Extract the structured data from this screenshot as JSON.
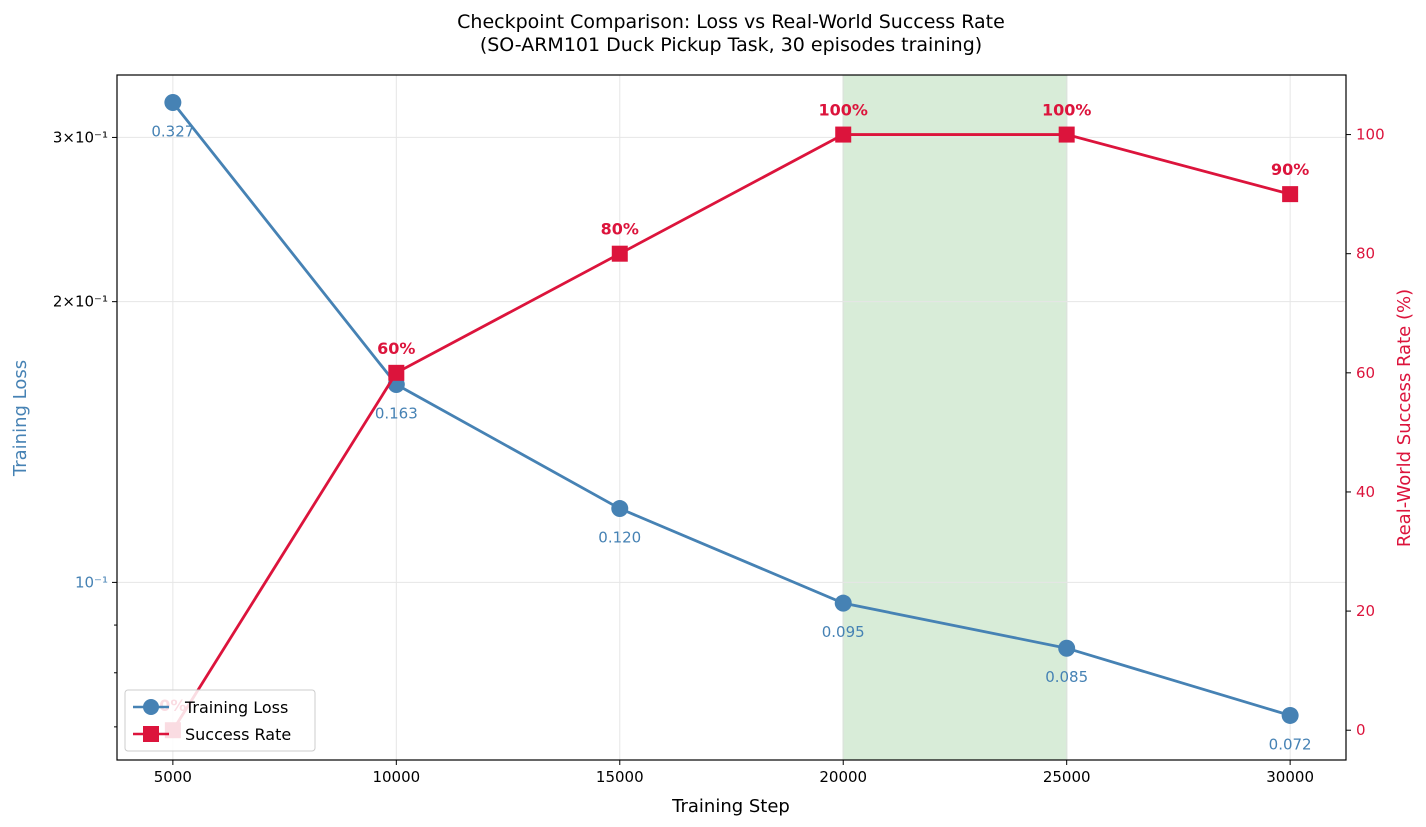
{
  "chart_data": {
    "type": "line",
    "title": "Checkpoint Comparison: Loss vs Real-World Success Rate",
    "subtitle": "(SO-ARM101 Duck Pickup Task, 30 episodes training)",
    "xlabel": "Training Step",
    "ylabel_left": "Training Loss",
    "ylabel_right": "Real-World Success Rate (%)",
    "x": [
      5000,
      10000,
      15000,
      20000,
      25000,
      30000
    ],
    "x_ticks": [
      "5000",
      "10000",
      "15000",
      "20000",
      "25000",
      "30000"
    ],
    "xlim": [
      3750,
      31250
    ],
    "left_axis": {
      "scale": "log",
      "ylim": [
        0.0645,
        0.35
      ],
      "major_ticks": [
        {
          "value": 0.1,
          "label": "10⁻¹"
        },
        {
          "value": 0.2,
          "label": "2×10⁻¹"
        },
        {
          "value": 0.3,
          "label": "3×10⁻¹"
        }
      ],
      "minor_ticks": [
        0.07,
        0.08,
        0.09
      ]
    },
    "right_axis": {
      "scale": "linear",
      "ylim": [
        -5,
        110
      ],
      "ticks": [
        0,
        20,
        40,
        60,
        80,
        100
      ],
      "tick_labels": [
        "0",
        "20",
        "40",
        "60",
        "80",
        "100"
      ]
    },
    "highlight_range": [
      20000,
      25000
    ],
    "grid": true,
    "legend_position": "bottom-left",
    "series": [
      {
        "name": "Training Loss",
        "axis": "left",
        "values": [
          0.327,
          0.163,
          0.12,
          0.095,
          0.085,
          0.072
        ],
        "labels": [
          "0.327",
          "0.163",
          "0.120",
          "0.095",
          "0.085",
          "0.072"
        ],
        "color": "#4682b4",
        "marker": "circle"
      },
      {
        "name": "Success Rate",
        "axis": "right",
        "values": [
          0,
          60,
          80,
          100,
          100,
          90
        ],
        "labels": [
          "0%",
          "60%",
          "80%",
          "100%",
          "100%",
          "90%"
        ],
        "color": "#dc143c",
        "marker": "square"
      }
    ],
    "colors": {
      "highlight": "#d8ecd8",
      "highlight_edge": "#9ccb9c",
      "grid": "#e6e6e6",
      "axis": "#000000"
    }
  }
}
